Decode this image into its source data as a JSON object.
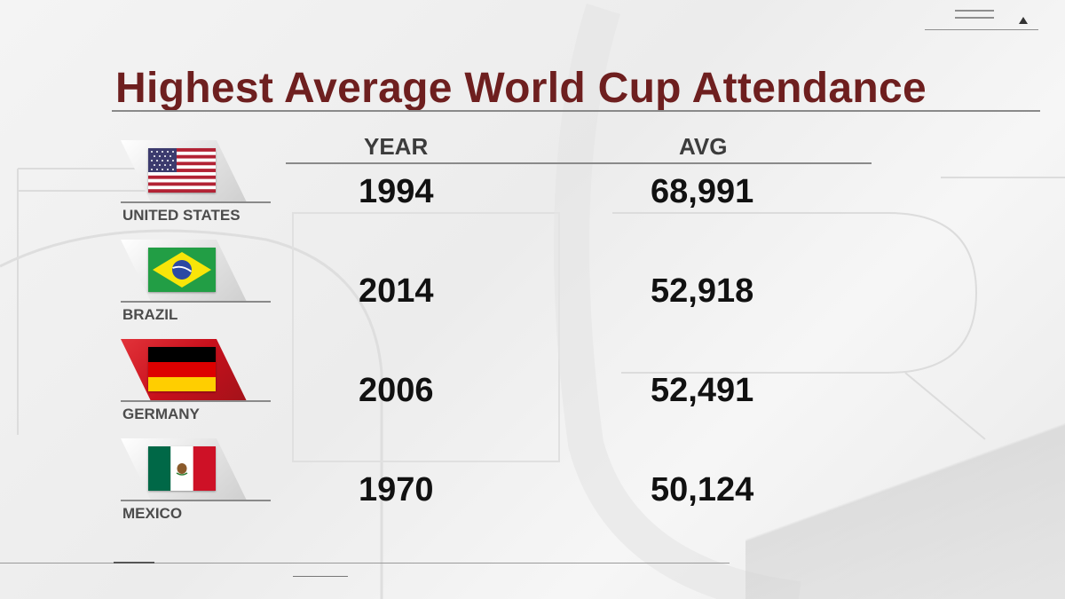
{
  "title": "Highest Average World Cup Attendance",
  "columns": {
    "year": "YEAR",
    "avg": "AVG"
  },
  "rows": [
    {
      "country": "UNITED STATES",
      "year": "1994",
      "avg": "68,991",
      "flag": "usa-flag"
    },
    {
      "country": "BRAZIL",
      "year": "2014",
      "avg": "52,918",
      "flag": "brazil-flag"
    },
    {
      "country": "GERMANY",
      "year": "2006",
      "avg": "52,491",
      "flag": "germany-flag"
    },
    {
      "country": "MEXICO",
      "year": "1970",
      "avg": "50,124",
      "flag": "mexico-flag"
    }
  ],
  "colors": {
    "title": "#6e1f1f",
    "highlight_card": "#c8101c"
  }
}
